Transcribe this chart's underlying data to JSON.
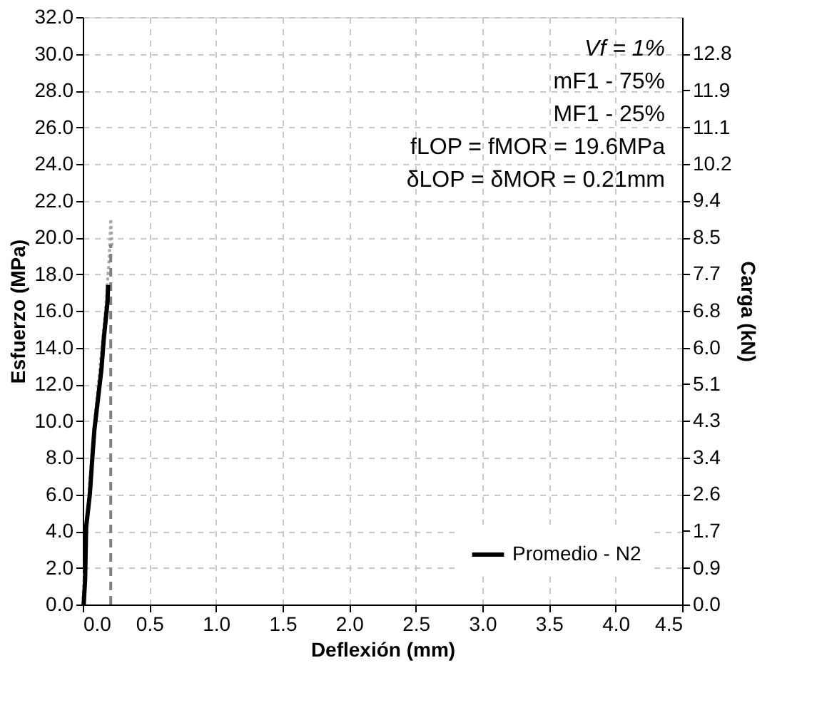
{
  "chart_data": {
    "type": "line",
    "xlabel": "Deflexión (mm)",
    "ylabel": "Esfuerzo (MPa)",
    "y2label": "Carga (kN)",
    "xlim": [
      0,
      4.5
    ],
    "xticks": [
      {
        "value": 0,
        "label": "0.0"
      },
      {
        "value": 0.5,
        "label": "0.5"
      },
      {
        "value": 1,
        "label": "1.0"
      },
      {
        "value": 1.5,
        "label": "1.5"
      },
      {
        "value": 2,
        "label": "2.0"
      },
      {
        "value": 2.5,
        "label": "2.5"
      },
      {
        "value": 3,
        "label": "3.0"
      },
      {
        "value": 3.5,
        "label": "3.5"
      },
      {
        "value": 4,
        "label": "4.0"
      },
      {
        "value": 4.5,
        "label": "4.5"
      }
    ],
    "ylim": [
      0,
      32
    ],
    "yticks": [
      {
        "value": 0,
        "label": "0.0"
      },
      {
        "value": 2,
        "label": "2.0"
      },
      {
        "value": 4,
        "label": "4.0"
      },
      {
        "value": 6,
        "label": "6.0"
      },
      {
        "value": 8,
        "label": "8.0"
      },
      {
        "value": 10,
        "label": "10.0"
      },
      {
        "value": 12,
        "label": "12.0"
      },
      {
        "value": 14,
        "label": "14.0"
      },
      {
        "value": 16,
        "label": "16.0"
      },
      {
        "value": 18,
        "label": "18.0"
      },
      {
        "value": 20,
        "label": "20.0"
      },
      {
        "value": 22,
        "label": "22.0"
      },
      {
        "value": 24,
        "label": "24.0"
      },
      {
        "value": 26,
        "label": "26.0"
      },
      {
        "value": 28,
        "label": "28.0"
      },
      {
        "value": 30,
        "label": "30.0"
      },
      {
        "value": 32,
        "label": "32.0"
      }
    ],
    "y2lim": [
      0,
      13.653
    ],
    "y2ticks": [
      {
        "value": 0,
        "label": "0.0"
      },
      {
        "value": 0.853,
        "label": "0.9"
      },
      {
        "value": 1.707,
        "label": "1.7"
      },
      {
        "value": 2.56,
        "label": "2.6"
      },
      {
        "value": 3.413,
        "label": "3.4"
      },
      {
        "value": 4.267,
        "label": "4.3"
      },
      {
        "value": 5.12,
        "label": "5.1"
      },
      {
        "value": 5.973,
        "label": "6.0"
      },
      {
        "value": 6.827,
        "label": "6.8"
      },
      {
        "value": 7.68,
        "label": "7.7"
      },
      {
        "value": 8.533,
        "label": "8.5"
      },
      {
        "value": 9.387,
        "label": "9.4"
      },
      {
        "value": 10.24,
        "label": "10.2"
      },
      {
        "value": 11.093,
        "label": "11.1"
      },
      {
        "value": 11.947,
        "label": "11.9"
      },
      {
        "value": 12.8,
        "label": "12.8"
      }
    ],
    "grid": true,
    "legend": "bottom right",
    "marker": "none",
    "annotations": [
      "Vf = 1%",
      "mF1 - 75%",
      "MF1 - 25%",
      "fLOP = fMOR = 19.6MPa",
      "δLOP = δMOR = 0.21mm"
    ],
    "series": [
      {
        "color": "#a6a6a6",
        "line_style": "dotted",
        "x": [
          0,
          0.02,
          0.05,
          0.09,
          0.13,
          0.17,
          0.2,
          0.21,
          0.22
        ],
        "values": [
          0,
          3,
          6.5,
          10,
          13,
          16,
          19,
          21,
          19.5
        ]
      },
      {
        "color": "#808080",
        "line_style": "dashed",
        "x": [
          0.21,
          0.21
        ],
        "values": [
          0,
          19.6
        ]
      },
      {
        "name": "Promedio - N2",
        "color": "#000000",
        "line_style": "solid",
        "x": [
          0.007,
          0.018,
          0.025,
          0.053,
          0.07,
          0.087,
          0.116,
          0.14,
          0.158,
          0.186,
          0.19
        ],
        "values": [
          0,
          1.4,
          4.2,
          6,
          7.8,
          9.5,
          11.3,
          12.8,
          14.5,
          16.5,
          17.4
        ]
      }
    ]
  }
}
